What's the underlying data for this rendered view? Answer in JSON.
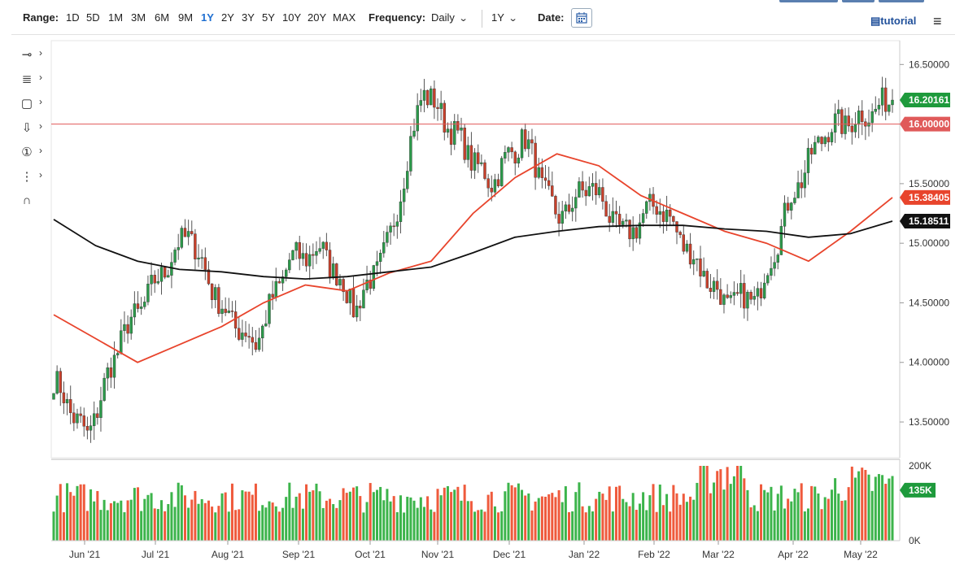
{
  "toolbar": {
    "range_label": "Range:",
    "ranges": [
      "1D",
      "5D",
      "1M",
      "3M",
      "6M",
      "9M",
      "1Y",
      "2Y",
      "3Y",
      "5Y",
      "10Y",
      "20Y",
      "MAX"
    ],
    "selected_range": "1Y",
    "frequency_label": "Frequency:",
    "frequency_value": "Daily",
    "period_value": "1Y",
    "date_label": "Date:",
    "tutorial_label": "tutorial"
  },
  "left_tools": [
    {
      "name": "line-tool-icon",
      "glyph": "⊸"
    },
    {
      "name": "fib-tool-icon",
      "glyph": "≣"
    },
    {
      "name": "shape-tool-icon",
      "glyph": "▢"
    },
    {
      "name": "arrow-tool-icon",
      "glyph": "⇩"
    },
    {
      "name": "annotation-tool-icon",
      "glyph": "①"
    },
    {
      "name": "measure-tool-icon",
      "glyph": "⋮"
    },
    {
      "name": "magnet-tool-icon",
      "glyph": "∩"
    }
  ],
  "colors": {
    "up": "#2b9a4a",
    "down": "#c8402b",
    "vol_up": "#3cb44b",
    "vol_down": "#ef5a3c",
    "ma_fast": "#e8442c",
    "ma_slow": "#111111",
    "level": "#e05a5a",
    "last": "#1e9a3c"
  },
  "chart_data": [
    {
      "type": "candlestick",
      "title": "",
      "ylim": [
        13.2,
        16.7
      ],
      "y_ticks": [
        "16.50000",
        "15.50000",
        "15.00000",
        "14.50000",
        "14.00000",
        "13.50000"
      ],
      "x_ticks": [
        "Jun '21",
        "Jul '21",
        "Aug '21",
        "Sep '21",
        "Oct '21",
        "Nov '21",
        "Dec '21",
        "Jan '22",
        "Feb '22",
        "Mar '22",
        "Apr '22",
        "May '22"
      ],
      "anchors": [
        {
          "label": "Jun '21",
          "close": 13.85
        },
        {
          "label": "mid Jun '21",
          "close": 13.37
        },
        {
          "label": "Jul '21",
          "close": 14.2
        },
        {
          "label": "Aug '21",
          "close": 14.65
        },
        {
          "label": "late Aug '21",
          "close": 15.1
        },
        {
          "label": "Sep '21",
          "close": 14.45
        },
        {
          "label": "mid Sep '21",
          "close": 14.15
        },
        {
          "label": "Oct '21",
          "close": 14.85
        },
        {
          "label": "mid Oct '21",
          "close": 14.95
        },
        {
          "label": "late Oct '21",
          "close": 14.45
        },
        {
          "label": "Nov '21",
          "close": 15.0
        },
        {
          "label": "late Nov '21",
          "close": 16.3
        },
        {
          "label": "Dec '21",
          "close": 15.9
        },
        {
          "label": "mid Dec '21",
          "close": 15.5
        },
        {
          "label": "Jan '22",
          "close": 15.9
        },
        {
          "label": "mid Jan '22",
          "close": 15.2
        },
        {
          "label": "Feb '22",
          "close": 15.5
        },
        {
          "label": "mid Feb '22",
          "close": 15.05
        },
        {
          "label": "Mar '22",
          "close": 15.35
        },
        {
          "label": "mid Mar '22",
          "close": 14.9
        },
        {
          "label": "Apr '22",
          "close": 14.5
        },
        {
          "label": "mid Apr '22",
          "close": 14.55
        },
        {
          "label": "late Apr '22",
          "close": 15.4
        },
        {
          "label": "May '22",
          "close": 15.95
        },
        {
          "label": "mid May '22",
          "close": 16.05
        },
        {
          "label": "last",
          "close": 16.20161
        }
      ],
      "last_price": {
        "label": "16.20161",
        "value": 16.20161
      },
      "horizontal_line": {
        "label": "16.00000",
        "value": 16.0
      },
      "ma_fast": {
        "current_label": "15.38405",
        "points": [
          14.4,
          14.2,
          14.0,
          14.15,
          14.3,
          14.5,
          14.65,
          14.6,
          14.75,
          14.85,
          15.25,
          15.55,
          15.75,
          15.65,
          15.4,
          15.25,
          15.1,
          15.0,
          14.85,
          15.1,
          15.38405
        ]
      },
      "ma_slow": {
        "current_label": "15.18511",
        "points": [
          15.2,
          14.98,
          14.85,
          14.78,
          14.76,
          14.72,
          14.7,
          14.72,
          14.76,
          14.8,
          14.92,
          15.05,
          15.1,
          15.14,
          15.15,
          15.15,
          15.12,
          15.1,
          15.05,
          15.08,
          15.18511
        ]
      }
    },
    {
      "type": "bar",
      "title": "",
      "ylim": [
        0,
        200000
      ],
      "y_ticks": [
        "200K",
        "0K"
      ],
      "last_value_label": "135K",
      "base_level": 150000,
      "spikes": [
        {
          "label": "late Feb '22",
          "value": 200000
        },
        {
          "label": "early Mar '22",
          "value": 190000
        },
        {
          "label": "May '22",
          "value": 160000
        }
      ]
    }
  ]
}
